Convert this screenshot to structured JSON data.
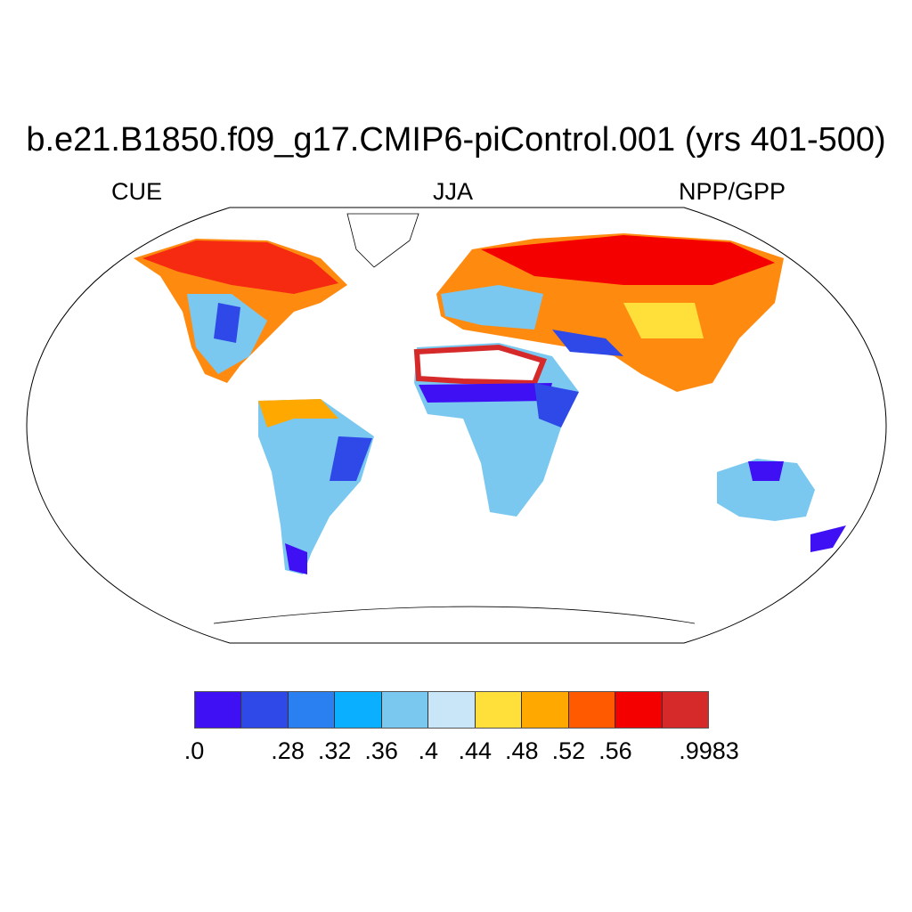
{
  "title": "b.e21.B1850.f09_g17.CMIP6-piControl.001 (yrs 401-500)",
  "left_label": "CUE",
  "center_label": "JJA",
  "right_label": "NPP/GPP",
  "colorbar": {
    "colors": [
      "#4010f5",
      "#2f48e8",
      "#2a80f0",
      "#0ab0ff",
      "#7ac8f0",
      "#c8e6f8",
      "#ffe03a",
      "#ffa800",
      "#ff5a00",
      "#f50000",
      "#d62a2a"
    ],
    "labels": [
      ".0",
      ".28",
      ".32",
      ".36",
      ".4",
      ".44",
      ".48",
      ".52",
      ".56",
      ".9983"
    ]
  }
}
